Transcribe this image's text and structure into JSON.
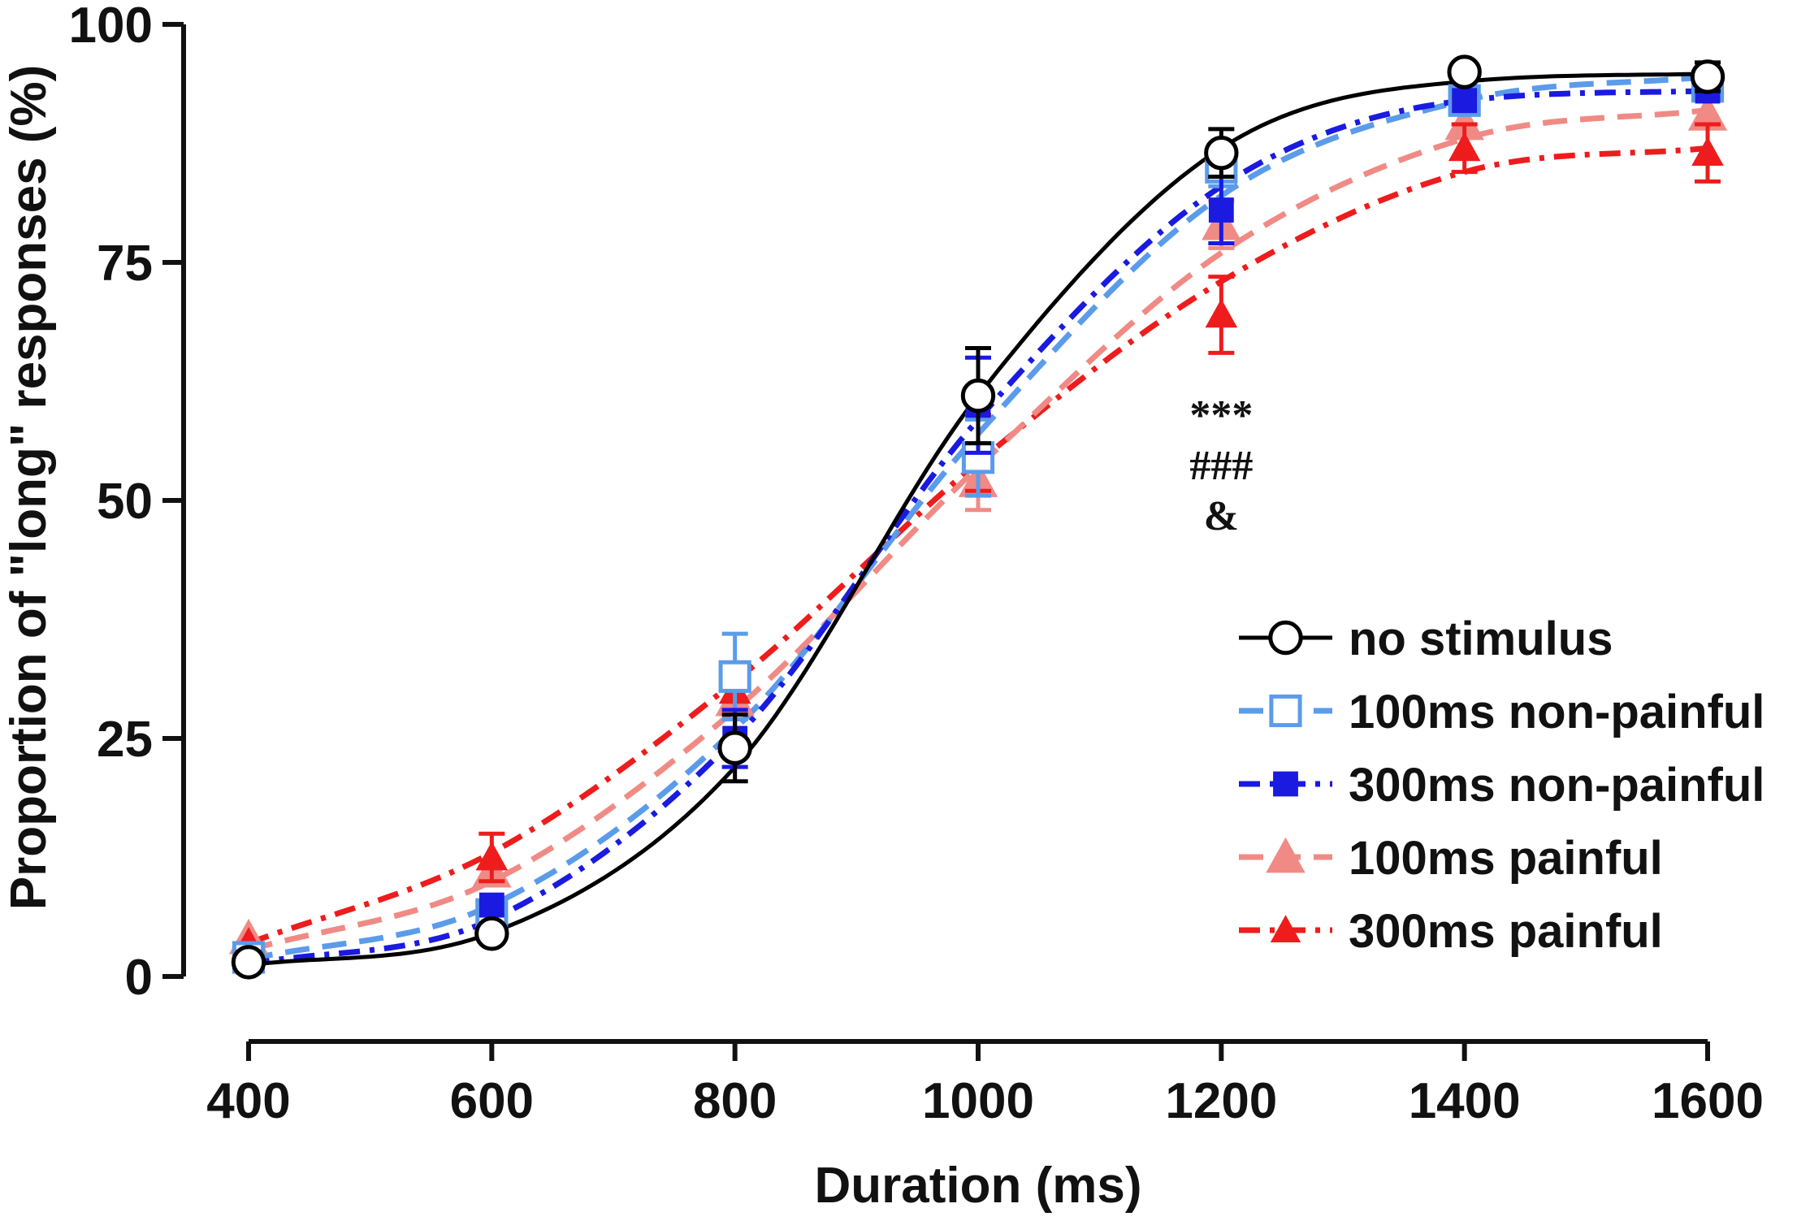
{
  "chart_data": {
    "type": "line",
    "title": "",
    "xlabel": "Duration (ms)",
    "ylabel": "Proportion of \"long\" responses (%)",
    "xlim": [
      400,
      1600
    ],
    "ylim": [
      0,
      100
    ],
    "x_ticks": [
      "400",
      "600",
      "800",
      "1000",
      "1200",
      "1400",
      "1600"
    ],
    "y_ticks": [
      "0",
      "25",
      "50",
      "75",
      "100"
    ],
    "grid": false,
    "legend_position": "bottom-right",
    "x": [
      400,
      600,
      800,
      1000,
      1200,
      1400,
      1600
    ],
    "series": [
      {
        "name": "no stimulus",
        "color": "#000000",
        "marker": "circle-open",
        "line_style": "solid",
        "values": [
          1.5,
          4.5,
          24,
          61,
          86.5,
          95,
          94.5
        ],
        "errors": [
          0,
          0,
          3.5,
          5,
          2.5,
          0,
          1.5
        ],
        "fit": [
          1.2,
          4.6,
          22,
          61,
          87,
          94,
          94.8
        ]
      },
      {
        "name": "100ms non-painful",
        "color": "#5b9bea",
        "marker": "square-open",
        "line_style": "dashed",
        "values": [
          2,
          6.5,
          31.5,
          54.5,
          85,
          92,
          93.5
        ],
        "errors": [
          0,
          0,
          4.5,
          4,
          2,
          0,
          0
        ],
        "fit": [
          1.8,
          7.5,
          26,
          57,
          82,
          92,
          94.5
        ]
      },
      {
        "name": "300ms non-painful",
        "color": "#1a1ae0",
        "marker": "square-filled",
        "line_style": "dash-dot",
        "values": [
          1.5,
          7.5,
          25,
          60,
          80.5,
          92,
          93
        ],
        "errors": [
          0,
          0,
          3,
          5,
          3.5,
          0,
          0
        ],
        "fit": [
          1.3,
          6,
          25,
          58.5,
          83,
          92,
          93
        ]
      },
      {
        "name": "100ms painful",
        "color": "#f08a85",
        "marker": "triangle-filled",
        "line_style": "dashed",
        "values": [
          4,
          11,
          29,
          52,
          79,
          89.5,
          90.5
        ],
        "errors": [
          0,
          0,
          2,
          3,
          2.5,
          0,
          0
        ],
        "fit": [
          2.8,
          10,
          28,
          53.5,
          76,
          88,
          91
        ]
      },
      {
        "name": "300ms painful",
        "color": "#ee1c1c",
        "marker": "triangle-filled",
        "line_style": "dash-dot",
        "values": [
          3.5,
          12.5,
          30,
          55,
          69.5,
          87,
          86.5
        ],
        "errors": [
          0,
          2.5,
          0,
          4,
          4,
          2.5,
          3
        ],
        "fit": [
          3.5,
          13,
          31,
          54,
          73,
          84.5,
          87
        ]
      }
    ],
    "annotations": [
      {
        "x": 1200,
        "text": "***"
      },
      {
        "x": 1200,
        "text": "###"
      },
      {
        "x": 1200,
        "text": "&"
      }
    ]
  }
}
